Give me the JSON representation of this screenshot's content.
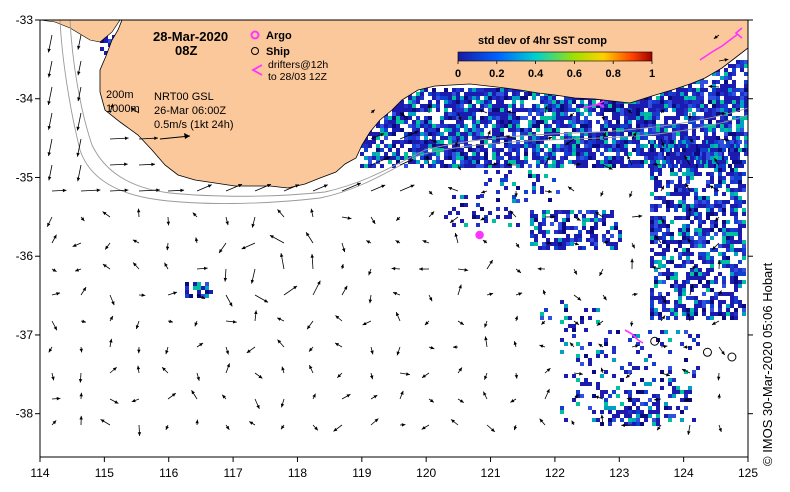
{
  "header": {
    "date": "28-Mar-2020",
    "time": "08Z"
  },
  "legend": {
    "argo_label": "Argo",
    "ship_label": "Ship",
    "drifters_line1": "drifters@12h",
    "drifters_line2": "to 28/03 12Z",
    "argo_color": "#ff33ff",
    "drifter_color": "#ff33ff"
  },
  "info": {
    "isobath_1": "200m",
    "isobath_2": "1000m",
    "product": "NRT00 GSL",
    "product_date": "26-Mar 06:00Z",
    "scale": "0.5m/s (1kt 24h)"
  },
  "colorbar": {
    "title": "std dev of 4hr SST comp",
    "ticks": [
      "0",
      "0.2",
      "0.4",
      "0.6",
      "0.8",
      "1"
    ]
  },
  "credit": "© IMOS 30-Mar-2020 05:06 Hobart",
  "axes": {
    "x_ticks": [
      "114",
      "115",
      "116",
      "117",
      "118",
      "119",
      "120",
      "121",
      "122",
      "123",
      "124",
      "125"
    ],
    "y_ticks": [
      "-33",
      "-34",
      "-35",
      "-36",
      "-37",
      "-38"
    ]
  },
  "map_data": {
    "lon_range": [
      114,
      125
    ],
    "lat_range": [
      -38.55,
      -33
    ],
    "argo_float": {
      "lon": 120.83,
      "lat": -35.73
    },
    "ships": [
      {
        "lon": 123.55,
        "lat": -37.08
      },
      {
        "lon": 124.37,
        "lat": -37.22
      },
      {
        "lon": 124.75,
        "lat": -37.28
      }
    ],
    "colors": {
      "land": "#fbc89b",
      "ocean": "#ffffff",
      "sst_low": "#1b1bb0",
      "sst_mid": "#00c0c0",
      "isobath": "#9a9a9a"
    }
  }
}
